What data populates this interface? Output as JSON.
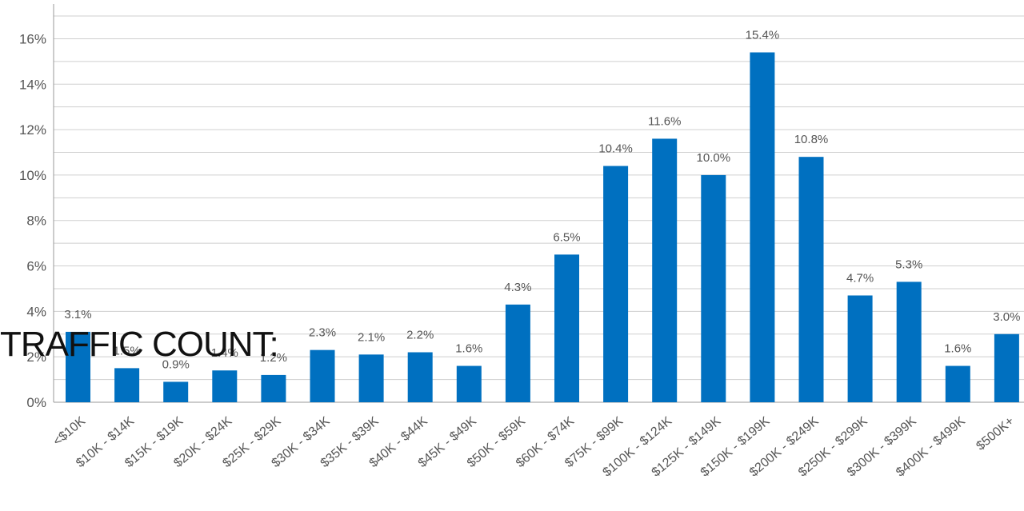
{
  "overlay_text": "TRAFFIC COUNT:",
  "chart_data": {
    "type": "bar",
    "categories": [
      "<$10K",
      "$10K - $14K",
      "$15K - $19K",
      "$20K - $24K",
      "$25K - $29K",
      "$30K - $34K",
      "$35K - $39K",
      "$40K - $44K",
      "$45K - $49K",
      "$50K - $59K",
      "$60K - $74K",
      "$75K - $99K",
      "$100K - $124K",
      "$125K - $149K",
      "$150K - $199K",
      "$200K - $249K",
      "$250K - $299K",
      "$300K - $399K",
      "$400K - $499K",
      "$500K+"
    ],
    "values": [
      3.1,
      1.5,
      0.9,
      1.4,
      1.2,
      2.3,
      2.1,
      2.2,
      1.6,
      4.3,
      6.5,
      10.4,
      11.6,
      10.0,
      15.4,
      10.8,
      4.7,
      5.3,
      1.6,
      3.0
    ],
    "data_labels": [
      "3.1%",
      "1.5%",
      "0.9%",
      "1.4%",
      "1.2%",
      "2.3%",
      "2.1%",
      "2.2%",
      "1.6%",
      "4.3%",
      "6.5%",
      "10.4%",
      "11.6%",
      "10.0%",
      "15.4%",
      "10.8%",
      "4.7%",
      "5.3%",
      "1.6%",
      "3.0%"
    ],
    "yticks": [
      0,
      2,
      4,
      6,
      8,
      10,
      12,
      14,
      16
    ],
    "ytick_labels": [
      "0%",
      "2%",
      "4%",
      "6%",
      "8%",
      "10%",
      "12%",
      "14%",
      "16%"
    ],
    "ylim": [
      0,
      17.6
    ],
    "bar_color": "#0070C0",
    "grid": true,
    "title": "",
    "xlabel": "",
    "ylabel": ""
  }
}
